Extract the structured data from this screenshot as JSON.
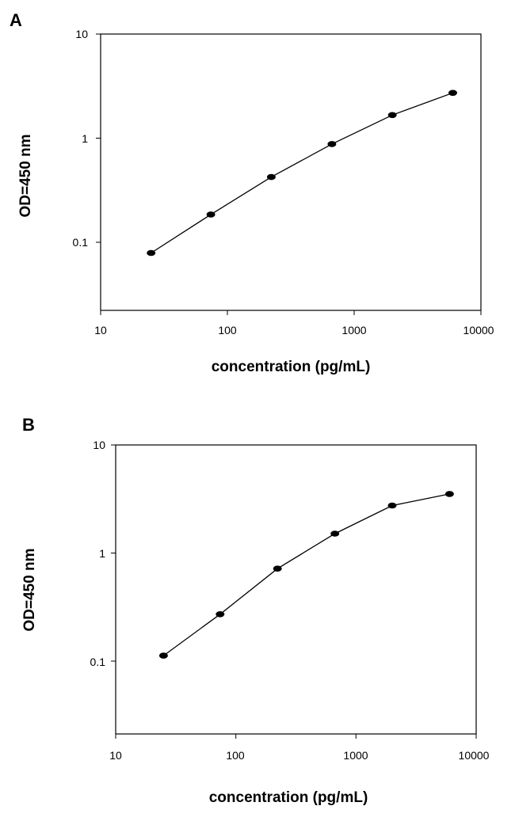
{
  "chart_data": [
    {
      "panel": "A",
      "type": "line",
      "xlabel": "concentration (pg/mL)",
      "ylabel": "OD=450 nm",
      "xscale": "log",
      "yscale": "log",
      "xlim": [
        10,
        10000
      ],
      "ylim": [
        0.01,
        10
      ],
      "xticks": [
        "10",
        "100",
        "1000",
        "10000"
      ],
      "yticks": [
        "10",
        "1",
        "0.1"
      ],
      "grid": false,
      "series": [
        {
          "x": [
            25,
            74,
            222,
            667,
            2000,
            6000
          ],
          "y": [
            0.042,
            0.11,
            0.28,
            0.64,
            1.32,
            2.3
          ]
        }
      ]
    },
    {
      "panel": "B",
      "type": "line",
      "xlabel": "concentration (pg/mL)",
      "ylabel": "OD=450 nm",
      "xscale": "log",
      "yscale": "log",
      "xlim": [
        10,
        10000
      ],
      "ylim": [
        0.01,
        10
      ],
      "xticks": [
        "10",
        "100",
        "1000",
        "10000"
      ],
      "yticks": [
        "10",
        "1",
        "0.1"
      ],
      "grid": false,
      "series": [
        {
          "x": [
            25,
            74,
            222,
            667,
            2000,
            6000
          ],
          "y": [
            0.065,
            0.175,
            0.52,
            1.2,
            2.35,
            3.1
          ]
        }
      ]
    }
  ]
}
